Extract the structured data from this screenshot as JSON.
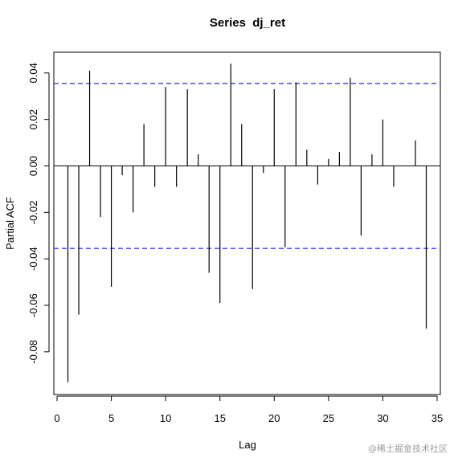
{
  "chart_data": {
    "type": "bar",
    "title": "Series  dj_ret",
    "xlabel": "Lag",
    "ylabel": "Partial ACF",
    "xlim": [
      0,
      35
    ],
    "ylim": [
      -0.1,
      0.045
    ],
    "x_ticks": [
      0,
      5,
      10,
      15,
      20,
      25,
      30,
      35
    ],
    "y_ticks": [
      -0.08,
      -0.06,
      -0.04,
      -0.02,
      0.0,
      0.02,
      0.04
    ],
    "y_tick_labels": [
      "-0.08",
      "-0.06",
      "-0.04",
      "-0.02",
      "0.00",
      "0.02",
      "0.04"
    ],
    "confidence_limit": 0.0355,
    "series": [
      {
        "lags": [
          1,
          2,
          3,
          4,
          5,
          6,
          7,
          8,
          9,
          10,
          11,
          12,
          13,
          14,
          15,
          16,
          17,
          18,
          19,
          20,
          21,
          22,
          23,
          24,
          25,
          26,
          27,
          28,
          29,
          30,
          31,
          32,
          33,
          34
        ],
        "values": [
          -0.093,
          -0.064,
          0.041,
          -0.022,
          -0.052,
          -0.004,
          -0.02,
          0.018,
          -0.009,
          0.034,
          -0.009,
          0.033,
          0.005,
          -0.046,
          -0.059,
          0.044,
          0.018,
          -0.053,
          -0.003,
          0.033,
          -0.035,
          0.036,
          0.007,
          -0.008,
          0.003,
          0.006,
          0.038,
          -0.03,
          0.005,
          0.02,
          -0.009,
          0.0,
          0.011,
          -0.07
        ]
      }
    ],
    "colors": {
      "bars": "#000000",
      "confidence_lines": "#3b3bff",
      "frame": "#000000"
    },
    "grid": false
  },
  "watermark": "@稀土掘金技术社区"
}
